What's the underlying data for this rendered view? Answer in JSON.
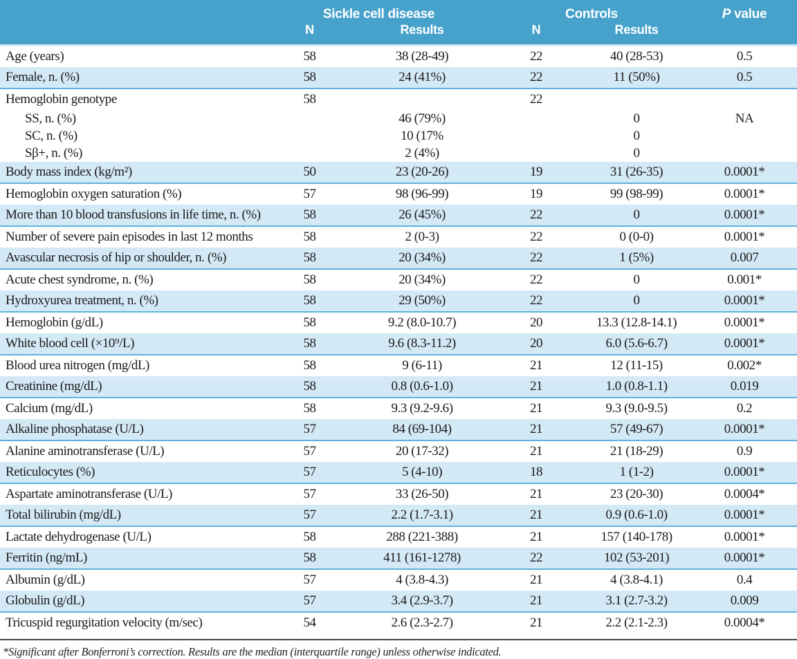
{
  "colors": {
    "header_bg": "#47a2cb",
    "header_text": "#ffffff",
    "shaded_row_bg": "#d4e9f6",
    "shaded_row_border": "#5fb2da",
    "header_underline": "#cfe9f6",
    "body_text": "#1a1a1a",
    "footnote_rule": "#454545"
  },
  "header": {
    "group_sickle": "Sickle cell disease",
    "group_controls": "Controls",
    "p_italic": "P",
    "p_rest": " value",
    "n_label": "N",
    "results_label": "Results"
  },
  "rows": [
    {
      "label": "Age (years)",
      "n1": "58",
      "r1": "38 (28-49)",
      "n2": "22",
      "r2": "40 (28-53)",
      "p": "0.5",
      "shaded": false,
      "sub": false
    },
    {
      "label": "Female, n. (%)",
      "n1": "58",
      "r1": "24 (41%)",
      "n2": "22",
      "r2": "11 (50%)",
      "p": "0.5",
      "shaded": true,
      "sub": false
    },
    {
      "label": "Hemoglobin genotype",
      "n1": "58",
      "r1": "",
      "n2": "22",
      "r2": "",
      "p": "",
      "shaded": false,
      "sub": false
    },
    {
      "label": "SS, n. (%)",
      "n1": "",
      "r1": "46 (79%)",
      "n2": "",
      "r2": "0",
      "p": "NA",
      "shaded": false,
      "sub": true
    },
    {
      "label": "SC, n. (%)",
      "n1": "",
      "r1": "10 (17%",
      "n2": "",
      "r2": "0",
      "p": "",
      "shaded": false,
      "sub": true
    },
    {
      "label": "Sβ+, n. (%)",
      "n1": "",
      "r1": "2 (4%)",
      "n2": "",
      "r2": "0",
      "p": "",
      "shaded": false,
      "sub": true
    },
    {
      "label": "Body mass index (kg/m²)",
      "n1": "50",
      "r1": "23 (20-26)",
      "n2": "19",
      "r2": "31 (26-35)",
      "p": "0.0001*",
      "shaded": true,
      "sub": false
    },
    {
      "label": "Hemoglobin oxygen saturation (%)",
      "n1": "57",
      "r1": "98 (96-99)",
      "n2": "19",
      "r2": "99 (98-99)",
      "p": "0.0001*",
      "shaded": false,
      "sub": false
    },
    {
      "label": "More than 10 blood transfusions in life time, n. (%)",
      "n1": "58",
      "r1": "26 (45%)",
      "n2": "22",
      "r2": "0",
      "p": "0.0001*",
      "shaded": true,
      "sub": false
    },
    {
      "label": "Number of severe pain episodes in last 12 months",
      "n1": "58",
      "r1": "2 (0-3)",
      "n2": "22",
      "r2": "0 (0-0)",
      "p": "0.0001*",
      "shaded": false,
      "sub": false
    },
    {
      "label": "Avascular necrosis of hip or shoulder, n. (%)",
      "n1": "58",
      "r1": "20 (34%)",
      "n2": "22",
      "r2": "1 (5%)",
      "p": "0.007",
      "shaded": true,
      "sub": false
    },
    {
      "label": "Acute chest syndrome, n. (%)",
      "n1": "58",
      "r1": "20 (34%)",
      "n2": "22",
      "r2": "0",
      "p": "0.001*",
      "shaded": false,
      "sub": false
    },
    {
      "label": "Hydroxyurea treatment, n. (%)",
      "n1": "58",
      "r1": "29 (50%)",
      "n2": "22",
      "r2": "0",
      "p": "0.0001*",
      "shaded": true,
      "sub": false
    },
    {
      "label": "Hemoglobin (g/dL)",
      "n1": "58",
      "r1": "9.2 (8.0-10.7)",
      "n2": "20",
      "r2": "13.3 (12.8-14.1)",
      "p": "0.0001*",
      "shaded": false,
      "sub": false
    },
    {
      "label": "White blood cell (×10⁹/L)",
      "n1": "58",
      "r1": "9.6 (8.3-11.2)",
      "n2": "20",
      "r2": "6.0 (5.6-6.7)",
      "p": "0.0001*",
      "shaded": true,
      "sub": false
    },
    {
      "label": "Blood urea nitrogen (mg/dL)",
      "n1": "58",
      "r1": "9 (6-11)",
      "n2": "21",
      "r2": "12 (11-15)",
      "p": "0.002*",
      "shaded": false,
      "sub": false
    },
    {
      "label": "Creatinine (mg/dL)",
      "n1": "58",
      "r1": "0.8 (0.6-1.0)",
      "n2": "21",
      "r2": "1.0 (0.8-1.1)",
      "p": "0.019",
      "shaded": true,
      "sub": false
    },
    {
      "label": "Calcium (mg/dL)",
      "n1": "58",
      "r1": "9.3 (9.2-9.6)",
      "n2": "21",
      "r2": "9.3 (9.0-9.5)",
      "p": "0.2",
      "shaded": false,
      "sub": false
    },
    {
      "label": "Alkaline phosphatase (U/L)",
      "n1": "57",
      "r1": "84 (69-104)",
      "n2": "21",
      "r2": "57 (49-67)",
      "p": "0.0001*",
      "shaded": true,
      "sub": false
    },
    {
      "label": "Alanine aminotransferase (U/L)",
      "n1": "57",
      "r1": "20 (17-32)",
      "n2": "21",
      "r2": "21 (18-29)",
      "p": "0.9",
      "shaded": false,
      "sub": false
    },
    {
      "label": "Reticulocytes (%)",
      "n1": "57",
      "r1": "5 (4-10)",
      "n2": "18",
      "r2": "1 (1-2)",
      "p": "0.0001*",
      "shaded": true,
      "sub": false
    },
    {
      "label": "Aspartate aminotransferase (U/L)",
      "n1": "57",
      "r1": "33 (26-50)",
      "n2": "21",
      "r2": "23 (20-30)",
      "p": "0.0004*",
      "shaded": false,
      "sub": false
    },
    {
      "label": "Total bilirubin (mg/dL)",
      "n1": "57",
      "r1": "2.2 (1.7-3.1)",
      "n2": "21",
      "r2": "0.9 (0.6-1.0)",
      "p": "0.0001*",
      "shaded": true,
      "sub": false
    },
    {
      "label": "Lactate dehydrogenase (U/L)",
      "n1": "58",
      "r1": "288 (221-388)",
      "n2": "21",
      "r2": "157 (140-178)",
      "p": "0.0001*",
      "shaded": false,
      "sub": false
    },
    {
      "label": "Ferritin (ng/mL)",
      "n1": "58",
      "r1": "411 (161-1278)",
      "n2": "22",
      "r2": "102 (53-201)",
      "p": "0.0001*",
      "shaded": true,
      "sub": false
    },
    {
      "label": "Albumin (g/dL)",
      "n1": "57",
      "r1": "4 (3.8-4.3)",
      "n2": "21",
      "r2": "4 (3.8-4.1)",
      "p": "0.4",
      "shaded": false,
      "sub": false
    },
    {
      "label": "Globulin (g/dL)",
      "n1": "57",
      "r1": "3.4 (2.9-3.7)",
      "n2": "21",
      "r2": "3.1 (2.7-3.2)",
      "p": "0.009",
      "shaded": true,
      "sub": false
    },
    {
      "label": "Tricuspid regurgitation velocity (m/sec)",
      "n1": "54",
      "r1": "2.6 (2.3-2.7)",
      "n2": "21",
      "r2": "2.2 (2.1-2.3)",
      "p": "0.0004*",
      "shaded": false,
      "sub": false
    }
  ],
  "footnote": "*Significant after Bonferroni’s correction. Results are the median (interquartile range) unless otherwise indicated."
}
